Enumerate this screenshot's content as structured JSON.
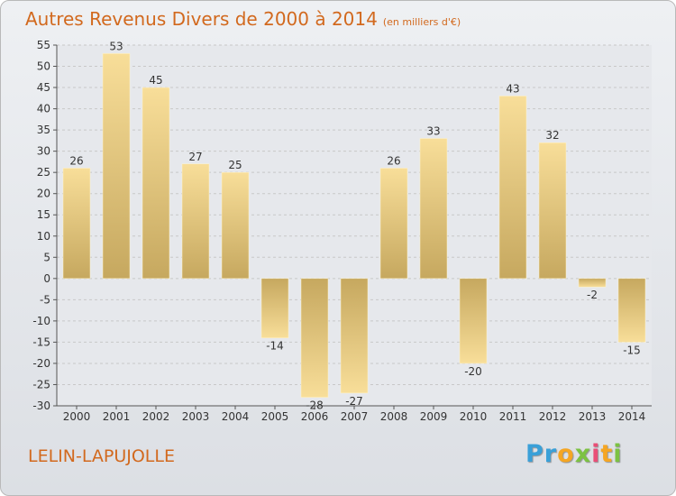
{
  "header": {
    "title": "Autres Revenus Divers de 2000 à 2014",
    "unit": "(en milliers d'€)"
  },
  "footer": {
    "location": "LELIN-LAPUJOLLE",
    "brand_letters": [
      {
        "ch": "P",
        "color": "#3aa0d8"
      },
      {
        "ch": "r",
        "color": "#3aa0d8"
      },
      {
        "ch": "o",
        "color": "#f5a623"
      },
      {
        "ch": "x",
        "color": "#7cc242"
      },
      {
        "ch": "i",
        "color": "#e94e77"
      },
      {
        "ch": "t",
        "color": "#f5a623"
      },
      {
        "ch": "i",
        "color": "#7cc242"
      }
    ]
  },
  "colors": {
    "title": "#d2691e",
    "bar_light": "#f8de99",
    "bar_dark": "#c6a85f",
    "grid": "#c8c8c8"
  },
  "chart_data": {
    "type": "bar",
    "title": "Autres Revenus Divers de 2000 à 2014",
    "xlabel": "",
    "ylabel": "",
    "categories": [
      "2000",
      "2001",
      "2002",
      "2003",
      "2004",
      "2005",
      "2006",
      "2007",
      "2008",
      "2009",
      "2010",
      "2011",
      "2012",
      "2013",
      "2014"
    ],
    "values": [
      26,
      53,
      45,
      27,
      25,
      -14,
      -28,
      -27,
      26,
      33,
      -20,
      43,
      32,
      -2,
      -15
    ],
    "ylim": [
      -30,
      55
    ],
    "yticks": [
      55,
      50,
      45,
      40,
      35,
      30,
      25,
      20,
      15,
      10,
      5,
      0,
      -5,
      -10,
      -15,
      -20,
      -25,
      -30
    ],
    "grid": true,
    "legend": "none"
  }
}
